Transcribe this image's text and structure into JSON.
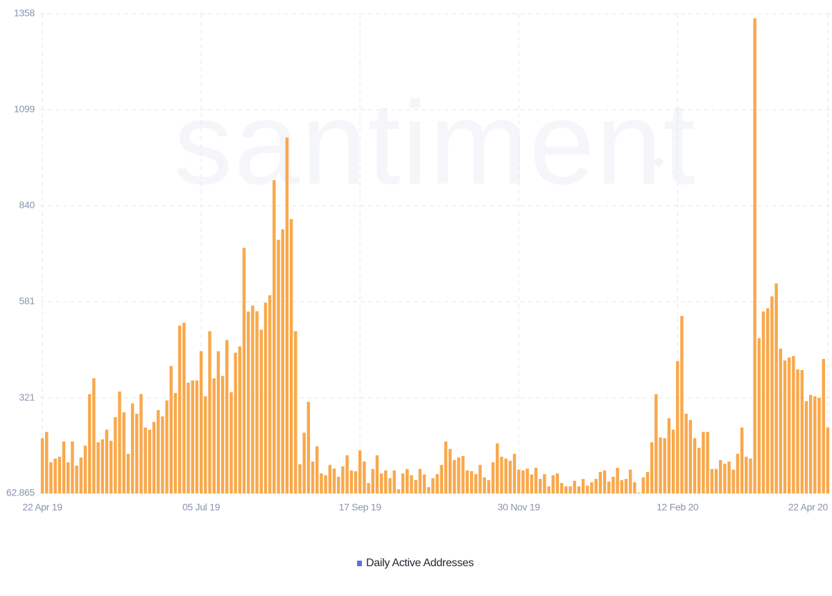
{
  "chart_data": {
    "type": "bar",
    "watermark": "santiment",
    "categories": [
      "22 Apr 19",
      null,
      null,
      null,
      null,
      null,
      null,
      null,
      null,
      null,
      null,
      null,
      null,
      null,
      null,
      null,
      null,
      null,
      null,
      null,
      null,
      null,
      null,
      null,
      null,
      null,
      null,
      null,
      null,
      null,
      null,
      null,
      null,
      null,
      null,
      null,
      null,
      "05 Jul 19",
      null,
      null,
      null,
      null,
      null,
      null,
      null,
      null,
      null,
      null,
      null,
      null,
      null,
      null,
      null,
      null,
      null,
      null,
      null,
      null,
      null,
      null,
      null,
      null,
      null,
      null,
      null,
      null,
      null,
      null,
      null,
      null,
      null,
      null,
      null,
      null,
      "17 Sep 19",
      null,
      null,
      null,
      null,
      null,
      null,
      null,
      null,
      null,
      null,
      null,
      null,
      null,
      null,
      null,
      null,
      null,
      null,
      null,
      null,
      null,
      null,
      null,
      null,
      null,
      null,
      null,
      null,
      null,
      null,
      null,
      null,
      null,
      null,
      null,
      null,
      "30 Nov 19",
      null,
      null,
      null,
      null,
      null,
      null,
      null,
      null,
      null,
      null,
      null,
      null,
      null,
      null,
      null,
      null,
      null,
      null,
      null,
      null,
      null,
      null,
      null,
      null,
      null,
      null,
      null,
      null,
      null,
      null,
      null,
      null,
      null,
      null,
      null,
      null,
      "12 Feb 20",
      null,
      null,
      null,
      null,
      null,
      null,
      null,
      null,
      null,
      null,
      null,
      null,
      null,
      null,
      null,
      null,
      null,
      null,
      null,
      null,
      null,
      null,
      null,
      null,
      null,
      null,
      null,
      null,
      null,
      null,
      null,
      null,
      null,
      null,
      "22 Apr 20"
    ],
    "series": [
      {
        "name": "Daily Active Addresses",
        "color": "#f9a84b",
        "legend_color": "#5a6df0",
        "values": [
          212,
          229,
          147,
          157,
          162,
          203,
          147,
          203,
          138,
          160,
          192,
          331,
          374,
          201,
          209,
          235,
          205,
          269,
          338,
          282,
          170,
          306,
          278,
          331,
          241,
          235,
          256,
          288,
          271,
          314,
          407,
          334,
          516,
          524,
          362,
          368,
          368,
          447,
          325,
          501,
          374,
          447,
          380,
          477,
          336,
          443,
          460,
          726,
          554,
          570,
          555,
          505,
          578,
          598,
          909,
          748,
          776,
          1024,
          804,
          501,
          142,
          227,
          310,
          149,
          190,
          117,
          112,
          140,
          130,
          108,
          136,
          166,
          125,
          123,
          179,
          149,
          91,
          129,
          166,
          117,
          125,
          104,
          125,
          74,
          117,
          129,
          112,
          99,
          129,
          114,
          80,
          104,
          115,
          140,
          203,
          183,
          153,
          160,
          164,
          125,
          123,
          115,
          140,
          106,
          99,
          147,
          198,
          162,
          157,
          151,
          170,
          127,
          125,
          130,
          114,
          132,
          102,
          115,
          82,
          112,
          117,
          91,
          82,
          82,
          97,
          82,
          102,
          84,
          93,
          102,
          121,
          125,
          95,
          108,
          132,
          99,
          102,
          127,
          93,
          65,
          106,
          121,
          201,
          331,
          214,
          212,
          266,
          235,
          420,
          542,
          278,
          261,
          212,
          186,
          229,
          229,
          129,
          129,
          153,
          143,
          149,
          127,
          170,
          241,
          162,
          157,
          1346,
          482,
          554,
          563,
          595,
          630,
          454,
          422,
          430,
          434,
          398,
          396,
          312,
          329,
          325,
          321,
          426,
          241
        ]
      }
    ],
    "ylim": [
      62.865,
      1358
    ],
    "yticks": [
      62.865,
      321,
      581,
      840,
      1099,
      1358
    ],
    "grid": true
  }
}
